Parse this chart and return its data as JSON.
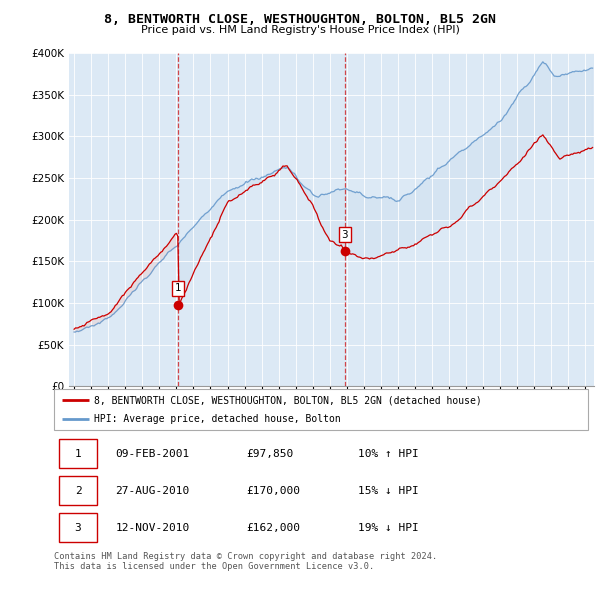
{
  "title": "8, BENTWORTH CLOSE, WESTHOUGHTON, BOLTON, BL5 2GN",
  "subtitle": "Price paid vs. HM Land Registry's House Price Index (HPI)",
  "background_color": "#ffffff",
  "plot_bg_color": "#dce9f5",
  "grid_color": "#ffffff",
  "transactions": [
    {
      "date": 2001.11,
      "price": 97850,
      "label": "1"
    },
    {
      "date": 2010.65,
      "price": 170000,
      "label": "2"
    },
    {
      "date": 2010.87,
      "price": 162000,
      "label": "3"
    }
  ],
  "table_rows": [
    [
      "1",
      "09-FEB-2001",
      "£97,850",
      "10% ↑ HPI"
    ],
    [
      "2",
      "27-AUG-2010",
      "£170,000",
      "15% ↓ HPI"
    ],
    [
      "3",
      "12-NOV-2010",
      "£162,000",
      "19% ↓ HPI"
    ]
  ],
  "footer": "Contains HM Land Registry data © Crown copyright and database right 2024.\nThis data is licensed under the Open Government Licence v3.0.",
  "legend_property": "8, BENTWORTH CLOSE, WESTHOUGHTON, BOLTON, BL5 2GN (detached house)",
  "legend_hpi": "HPI: Average price, detached house, Bolton",
  "property_color": "#cc0000",
  "hpi_color": "#6699cc",
  "vline_color": "#cc0000",
  "ylim": [
    0,
    400000
  ],
  "yticks": [
    0,
    50000,
    100000,
    150000,
    200000,
    250000,
    300000,
    350000,
    400000
  ],
  "ytick_labels": [
    "£0",
    "£50K",
    "£100K",
    "£150K",
    "£200K",
    "£250K",
    "£300K",
    "£350K",
    "£400K"
  ],
  "xlim_start": 1994.7,
  "xlim_end": 2025.5
}
